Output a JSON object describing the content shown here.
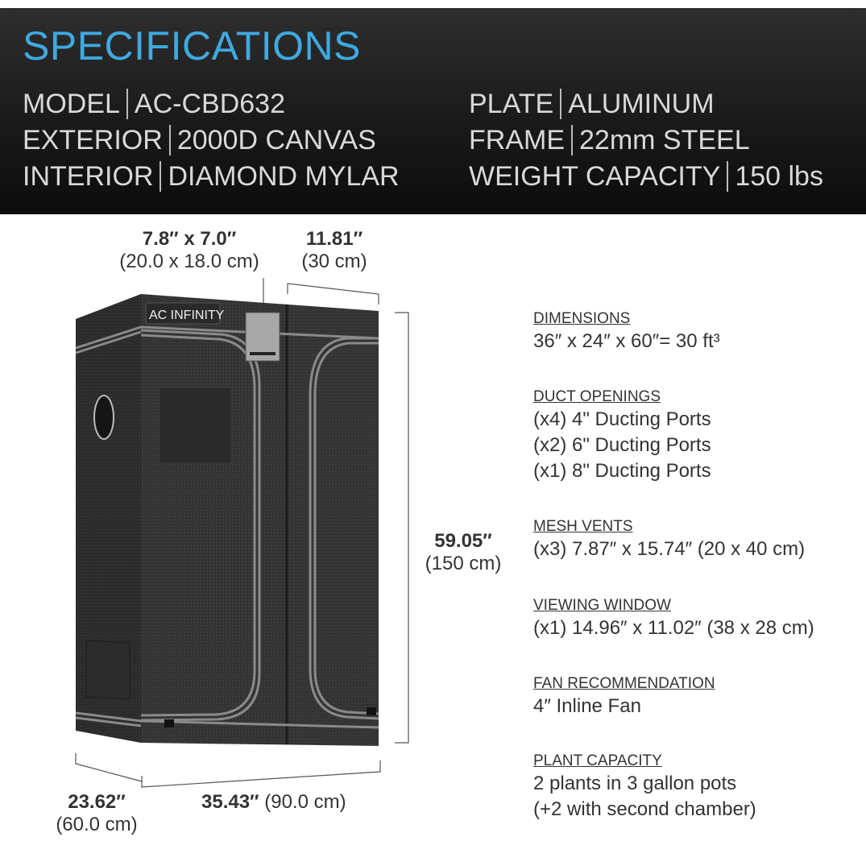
{
  "header": {
    "title": "SPECIFICATIONS",
    "title_color": "#3fa9e0",
    "specs_left": [
      {
        "label": "MODEL",
        "value": "AC-CBD632"
      },
      {
        "label": "EXTERIOR",
        "value": "2000D CANVAS"
      },
      {
        "label": "INTERIOR",
        "value": "DIAMOND MYLAR"
      }
    ],
    "specs_right": [
      {
        "label": "PLATE",
        "value": "ALUMINUM"
      },
      {
        "label": "FRAME",
        "value": "22mm STEEL"
      },
      {
        "label": "WEIGHT CAPACITY",
        "value": "150 lbs"
      }
    ]
  },
  "product": {
    "brand_label": "AC INFINITY",
    "dimensions": {
      "plate_in": "7.8″ x 7.0″",
      "plate_cm": "(20.0 x 18.0 cm)",
      "chamber_in": "11.81″",
      "chamber_cm": "(30 cm)",
      "height_in": "59.05″",
      "height_cm": "(150 cm)",
      "depth_in": "23.62″",
      "depth_cm": "(60.0 cm)",
      "width_in": "35.43″",
      "width_cm": "(90.0 cm)"
    }
  },
  "details": [
    {
      "heading": "DIMENSIONS",
      "lines": [
        "36″ x 24″ x 60″=  30 ft³"
      ]
    },
    {
      "heading": "DUCT OPENINGS",
      "lines": [
        "(x4) 4\" Ducting Ports",
        "(x2) 6\" Ducting Ports",
        "(x1) 8\" Ducting Ports"
      ]
    },
    {
      "heading": "MESH VENTS",
      "lines": [
        "(x3) 7.87″ x 15.74″ (20 x 40 cm)"
      ]
    },
    {
      "heading": "VIEWING WINDOW",
      "lines": [
        "(x1) 14.96″ x 11.02″ (38 x 28 cm)"
      ]
    },
    {
      "heading": "FAN RECOMMENDATION",
      "lines": [
        "4″ Inline Fan"
      ]
    },
    {
      "heading": "PLANT CAPACITY",
      "lines": [
        "2 plants in 3 gallon pots",
        "(+2 with second chamber)"
      ]
    }
  ]
}
